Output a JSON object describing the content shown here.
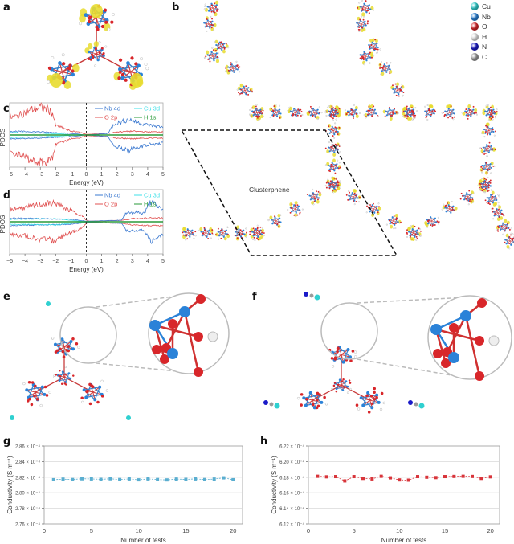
{
  "panels": {
    "a": "a",
    "b": "b",
    "c": "c",
    "d": "d",
    "e": "e",
    "f": "f",
    "g": "g",
    "h": "h"
  },
  "element_legend": [
    {
      "symbol": "Cu",
      "color": "#2fd0d0"
    },
    {
      "symbol": "Nb",
      "color": "#2a82d8"
    },
    {
      "symbol": "O",
      "color": "#d8262a"
    },
    {
      "symbol": "H",
      "color": "#e4e4e4"
    },
    {
      "symbol": "N",
      "color": "#1a1ac8"
    },
    {
      "symbol": "C",
      "color": "#9a9a9a"
    }
  ],
  "structure_label": "Clusterphene",
  "chart_data": [
    {
      "id": "c",
      "type": "line",
      "xlabel": "Energy (eV)",
      "ylabel": "PDOS",
      "xlim": [
        -5,
        5
      ],
      "xticks": [
        "-5",
        "-4",
        "-3",
        "-2",
        "-1",
        "0",
        "1",
        "2",
        "3",
        "4",
        "5"
      ],
      "fermi_level": 0,
      "legend": [
        {
          "label": "Nb 4d",
          "color": "#3a78d0"
        },
        {
          "label": "Cu 3d",
          "color": "#3fe0e8"
        },
        {
          "label": "O  2p",
          "color": "#e05050"
        },
        {
          "label": "H  1s",
          "color": "#2a9a3a"
        }
      ],
      "series": [
        {
          "name": "O 2p",
          "envelope": [
            [
              -5,
              0.55
            ],
            [
              -4.5,
              0.6
            ],
            [
              -4,
              0.72
            ],
            [
              -3.5,
              0.82
            ],
            [
              -3,
              0.88
            ],
            [
              -2.5,
              0.82
            ],
            [
              -2.2,
              0.7
            ],
            [
              -2,
              0.3
            ],
            [
              -1.5,
              0.22
            ],
            [
              -1,
              0.12
            ],
            [
              -0.5,
              0.1
            ],
            [
              0,
              0.02
            ],
            [
              1.4,
              0.05
            ],
            [
              2,
              0.1
            ],
            [
              3,
              0.12
            ],
            [
              4,
              0.1
            ],
            [
              5,
              0.1
            ]
          ]
        },
        {
          "name": "Nb 4d",
          "envelope": [
            [
              -5,
              0.12
            ],
            [
              -3,
              0.1
            ],
            [
              -1,
              0.05
            ],
            [
              0,
              0.0
            ],
            [
              1.4,
              0.05
            ],
            [
              1.8,
              0.35
            ],
            [
              2.3,
              0.42
            ],
            [
              2.8,
              0.5
            ],
            [
              3.2,
              0.42
            ],
            [
              4,
              0.32
            ],
            [
              5,
              0.25
            ]
          ]
        },
        {
          "name": "Cu 3d",
          "envelope": [
            [
              -5,
              0.08
            ],
            [
              -3,
              0.06
            ],
            [
              -1.8,
              0.04
            ],
            [
              -1,
              0.01
            ],
            [
              0,
              0
            ],
            [
              5,
              0
            ]
          ]
        },
        {
          "name": "H 1s",
          "envelope": [
            [
              -5,
              0.01
            ],
            [
              5,
              0.01
            ]
          ]
        }
      ]
    },
    {
      "id": "d",
      "type": "line",
      "xlabel": "Energy (eV)",
      "ylabel": "PDOS",
      "xlim": [
        -5,
        5
      ],
      "xticks": [
        "-5",
        "-4",
        "-3",
        "-2",
        "-1",
        "0",
        "1",
        "2",
        "3",
        "4",
        "5"
      ],
      "fermi_level": 0,
      "legend": [
        {
          "label": "Nb 4d",
          "color": "#3a78d0"
        },
        {
          "label": "Cu 3d",
          "color": "#3fe0e8"
        },
        {
          "label": "O  2p",
          "color": "#e05050"
        },
        {
          "label": "H  1s",
          "color": "#2a9a3a"
        }
      ],
      "series": [
        {
          "name": "O 2p",
          "envelope": [
            [
              -5,
              0.4
            ],
            [
              -4,
              0.45
            ],
            [
              -3,
              0.55
            ],
            [
              -2,
              0.6
            ],
            [
              -1.5,
              0.45
            ],
            [
              -1,
              0.35
            ],
            [
              -0.3,
              0.2
            ],
            [
              0,
              0.05
            ],
            [
              0.2,
              0.02
            ],
            [
              2.4,
              0.05
            ],
            [
              3,
              0.1
            ],
            [
              4,
              0.12
            ],
            [
              5,
              0.12
            ]
          ]
        },
        {
          "name": "Nb 4d",
          "envelope": [
            [
              -5,
              0.12
            ],
            [
              -3,
              0.1
            ],
            [
              -1,
              0.08
            ],
            [
              0,
              0.02
            ],
            [
              2.3,
              0.05
            ],
            [
              2.6,
              0.3
            ],
            [
              3.2,
              0.3
            ],
            [
              3.8,
              0.28
            ],
            [
              4.2,
              0.65
            ],
            [
              4.6,
              0.5
            ],
            [
              5,
              0.4
            ]
          ]
        },
        {
          "name": "Cu 3d",
          "envelope": [
            [
              -5,
              0.08
            ],
            [
              -2,
              0.1
            ],
            [
              -1,
              0.05
            ],
            [
              0,
              0
            ],
            [
              5,
              0
            ]
          ]
        },
        {
          "name": "H 1s",
          "envelope": [
            [
              -5,
              0.01
            ],
            [
              5,
              0.01
            ]
          ]
        }
      ]
    },
    {
      "id": "g",
      "type": "line",
      "xlabel": "Number of tests",
      "ylabel": "Conductivity (S m⁻¹)",
      "xlim": [
        0,
        21
      ],
      "xticks": [
        "0",
        "5",
        "10",
        "15",
        "20"
      ],
      "ylim": [
        2.76,
        2.86
      ],
      "yticks": [
        "2.86 × 10⁻⁴",
        "2.84 × 10⁻⁴",
        "2.82 × 10⁻⁴",
        "2.80 × 10⁻⁴",
        "2.78 × 10⁻⁴",
        "2.76 × 10⁻⁴"
      ],
      "color": "#5aaed0",
      "x": [
        1,
        2,
        3,
        4,
        5,
        6,
        7,
        8,
        9,
        10,
        11,
        12,
        13,
        14,
        15,
        16,
        17,
        18,
        19,
        20
      ],
      "values": [
        2.8168,
        2.8175,
        2.817,
        2.818,
        2.8178,
        2.8172,
        2.818,
        2.817,
        2.8178,
        2.8166,
        2.8178,
        2.817,
        2.8165,
        2.8176,
        2.8172,
        2.8178,
        2.817,
        2.8176,
        2.8192,
        2.8168
      ]
    },
    {
      "id": "h",
      "type": "line",
      "xlabel": "Number of tests",
      "ylabel": "Conductivity (S m⁻¹)",
      "xlim": [
        0,
        21
      ],
      "xticks": [
        "0",
        "5",
        "10",
        "15",
        "20"
      ],
      "ylim": [
        6.12,
        6.22
      ],
      "yticks": [
        "6.22 × 10⁻⁴",
        "6.20 × 10⁻⁴",
        "6.18 × 10⁻⁴",
        "6.16 × 10⁻⁴",
        "6.14 × 10⁻⁴",
        "6.12 × 10⁻⁴"
      ],
      "color": "#d8343a",
      "x": [
        1,
        2,
        3,
        4,
        5,
        6,
        7,
        8,
        9,
        10,
        11,
        12,
        13,
        14,
        15,
        16,
        17,
        18,
        19,
        20
      ],
      "values": [
        6.1812,
        6.1805,
        6.1808,
        6.1752,
        6.1808,
        6.1785,
        6.1778,
        6.1812,
        6.1792,
        6.1765,
        6.1762,
        6.1808,
        6.18,
        6.1795,
        6.1808,
        6.181,
        6.1812,
        6.181,
        6.1785,
        6.1805
      ]
    }
  ]
}
